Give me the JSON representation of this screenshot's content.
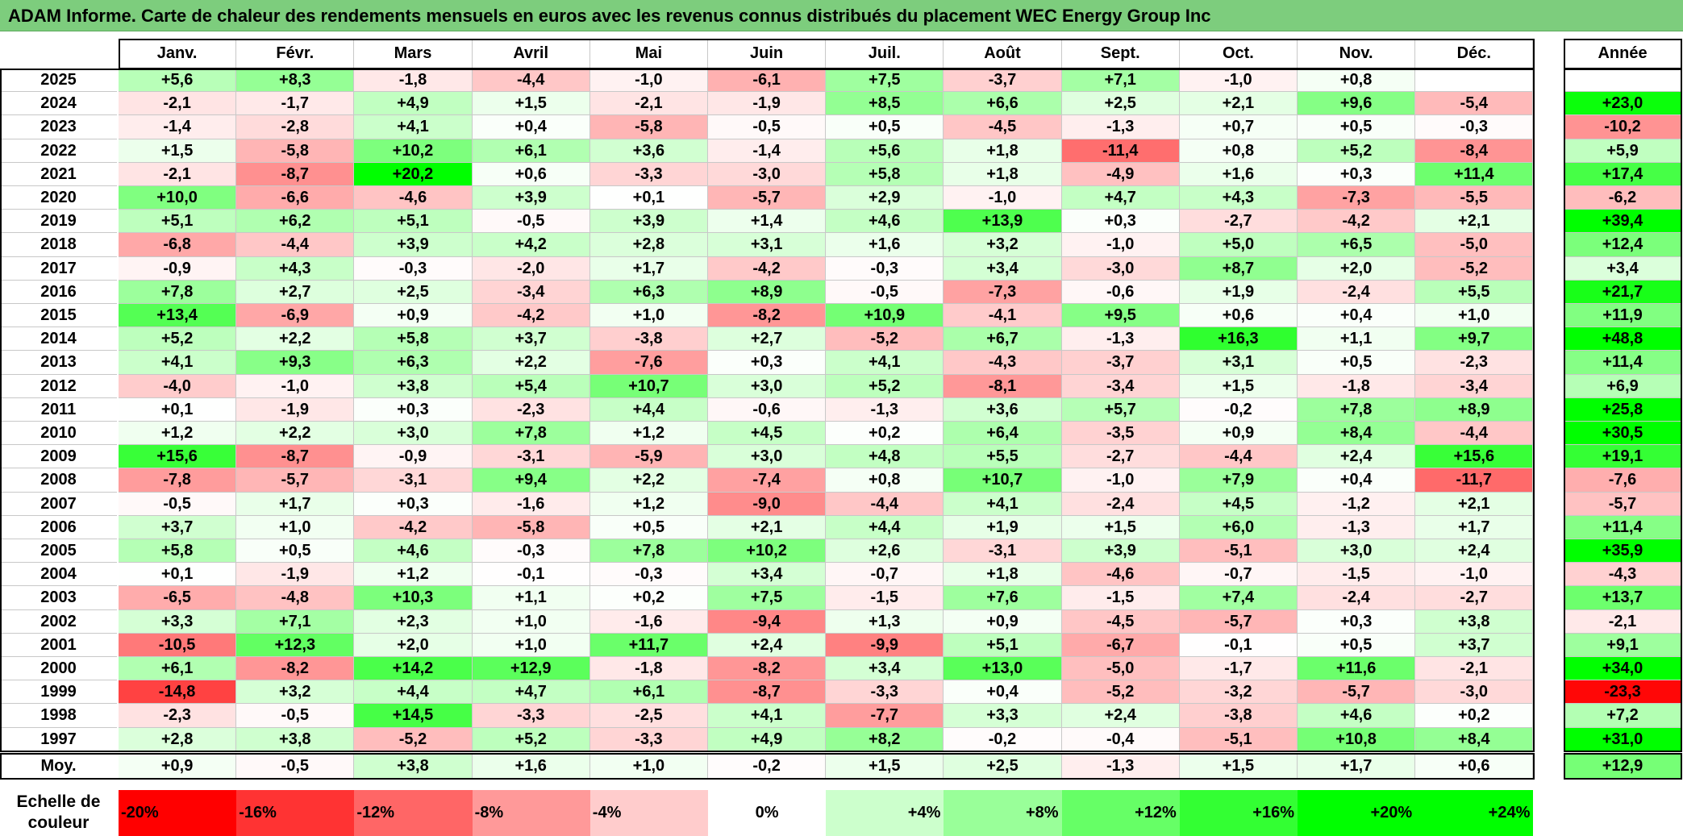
{
  "title": "ADAM Informe. Carte de chaleur des rendements mensuels en euros avec les revenus connus distribués du placement WEC Energy Group Inc",
  "colors": {
    "title_bar": "#7dcd7d",
    "negative_max": "#ff0000",
    "neutral": "#ffffff",
    "positive_max": "#00ff00"
  },
  "chart_data": {
    "type": "heatmap",
    "columns": [
      "Janv.",
      "Févr.",
      "Mars",
      "Avril",
      "Mai",
      "Juin",
      "Juil.",
      "Août",
      "Sept.",
      "Oct.",
      "Nov.",
      "Déc."
    ],
    "year_header": "Année",
    "rows": [
      {
        "year": "2025",
        "values": [
          "+5,6",
          "+8,3",
          "-1,8",
          "-4,4",
          "-1,0",
          "-6,1",
          "+7,5",
          "-3,7",
          "+7,1",
          "-1,0",
          "+0,8",
          ""
        ],
        "annual": ""
      },
      {
        "year": "2024",
        "values": [
          "-2,1",
          "-1,7",
          "+4,9",
          "+1,5",
          "-2,1",
          "-1,9",
          "+8,5",
          "+6,6",
          "+2,5",
          "+2,1",
          "+9,6",
          "-5,4"
        ],
        "annual": "+23,0"
      },
      {
        "year": "2023",
        "values": [
          "-1,4",
          "-2,8",
          "+4,1",
          "+0,4",
          "-5,8",
          "-0,5",
          "+0,5",
          "-4,5",
          "-1,3",
          "+0,7",
          "+0,5",
          "-0,3"
        ],
        "annual": "-10,2"
      },
      {
        "year": "2022",
        "values": [
          "+1,5",
          "-5,8",
          "+10,2",
          "+6,1",
          "+3,6",
          "-1,4",
          "+5,6",
          "+1,8",
          "-11,4",
          "+0,8",
          "+5,2",
          "-8,4"
        ],
        "annual": "+5,9"
      },
      {
        "year": "2021",
        "values": [
          "-2,1",
          "-8,7",
          "+20,2",
          "+0,6",
          "-3,3",
          "-3,0",
          "+5,8",
          "+1,8",
          "-4,9",
          "+1,6",
          "+0,3",
          "+11,4"
        ],
        "annual": "+17,4"
      },
      {
        "year": "2020",
        "values": [
          "+10,0",
          "-6,6",
          "-4,6",
          "+3,9",
          "+0,1",
          "-5,7",
          "+2,9",
          "-1,0",
          "+4,7",
          "+4,3",
          "-7,3",
          "-5,5"
        ],
        "annual": "-6,2"
      },
      {
        "year": "2019",
        "values": [
          "+5,1",
          "+6,2",
          "+5,1",
          "-0,5",
          "+3,9",
          "+1,4",
          "+4,6",
          "+13,9",
          "+0,3",
          "-2,7",
          "-4,2",
          "+2,1"
        ],
        "annual": "+39,4"
      },
      {
        "year": "2018",
        "values": [
          "-6,8",
          "-4,4",
          "+3,9",
          "+4,2",
          "+2,8",
          "+3,1",
          "+1,6",
          "+3,2",
          "-1,0",
          "+5,0",
          "+6,5",
          "-5,0"
        ],
        "annual": "+12,4"
      },
      {
        "year": "2017",
        "values": [
          "-0,9",
          "+4,3",
          "-0,3",
          "-2,0",
          "+1,7",
          "-4,2",
          "-0,3",
          "+3,4",
          "-3,0",
          "+8,7",
          "+2,0",
          "-5,2"
        ],
        "annual": "+3,4"
      },
      {
        "year": "2016",
        "values": [
          "+7,8",
          "+2,7",
          "+2,5",
          "-3,4",
          "+6,3",
          "+8,9",
          "-0,5",
          "-7,3",
          "-0,6",
          "+1,9",
          "-2,4",
          "+5,5"
        ],
        "annual": "+21,7"
      },
      {
        "year": "2015",
        "values": [
          "+13,4",
          "-6,9",
          "+0,9",
          "-4,2",
          "+1,0",
          "-8,2",
          "+10,9",
          "-4,1",
          "+9,5",
          "+0,6",
          "+0,4",
          "+1,0"
        ],
        "annual": "+11,9"
      },
      {
        "year": "2014",
        "values": [
          "+5,2",
          "+2,2",
          "+5,8",
          "+3,7",
          "-3,8",
          "+2,7",
          "-5,2",
          "+6,7",
          "-1,3",
          "+16,3",
          "+1,1",
          "+9,7"
        ],
        "annual": "+48,8"
      },
      {
        "year": "2013",
        "values": [
          "+4,1",
          "+9,3",
          "+6,3",
          "+2,2",
          "-7,6",
          "+0,3",
          "+4,1",
          "-4,3",
          "-3,7",
          "+3,1",
          "+0,5",
          "-2,3"
        ],
        "annual": "+11,4"
      },
      {
        "year": "2012",
        "values": [
          "-4,0",
          "-1,0",
          "+3,8",
          "+5,4",
          "+10,7",
          "+3,0",
          "+5,2",
          "-8,1",
          "-3,4",
          "+1,5",
          "-1,8",
          "-3,4"
        ],
        "annual": "+6,9"
      },
      {
        "year": "2011",
        "values": [
          "+0,1",
          "-1,9",
          "+0,3",
          "-2,3",
          "+4,4",
          "-0,6",
          "-1,3",
          "+3,6",
          "+5,7",
          "-0,2",
          "+7,8",
          "+8,9"
        ],
        "annual": "+25,8"
      },
      {
        "year": "2010",
        "values": [
          "+1,2",
          "+2,2",
          "+3,0",
          "+7,8",
          "+1,2",
          "+4,5",
          "+0,2",
          "+6,4",
          "-3,5",
          "+0,9",
          "+8,4",
          "-4,4"
        ],
        "annual": "+30,5"
      },
      {
        "year": "2009",
        "values": [
          "+15,6",
          "-8,7",
          "-0,9",
          "-3,1",
          "-5,9",
          "+3,0",
          "+4,8",
          "+5,5",
          "-2,7",
          "-4,4",
          "+2,4",
          "+15,6"
        ],
        "annual": "+19,1"
      },
      {
        "year": "2008",
        "values": [
          "-7,8",
          "-5,7",
          "-3,1",
          "+9,4",
          "+2,2",
          "-7,4",
          "+0,8",
          "+10,7",
          "-1,0",
          "+7,9",
          "+0,4",
          "-11,7"
        ],
        "annual": "-7,6"
      },
      {
        "year": "2007",
        "values": [
          "-0,5",
          "+1,7",
          "+0,3",
          "-1,6",
          "+1,2",
          "-9,0",
          "-4,4",
          "+4,1",
          "-2,4",
          "+4,5",
          "-1,2",
          "+2,1"
        ],
        "annual": "-5,7"
      },
      {
        "year": "2006",
        "values": [
          "+3,7",
          "+1,0",
          "-4,2",
          "-5,8",
          "+0,5",
          "+2,1",
          "+4,4",
          "+1,9",
          "+1,5",
          "+6,0",
          "-1,3",
          "+1,7"
        ],
        "annual": "+11,4"
      },
      {
        "year": "2005",
        "values": [
          "+5,8",
          "+0,5",
          "+4,6",
          "-0,3",
          "+7,8",
          "+10,2",
          "+2,6",
          "-3,1",
          "+3,9",
          "-5,1",
          "+3,0",
          "+2,4"
        ],
        "annual": "+35,9"
      },
      {
        "year": "2004",
        "values": [
          "+0,1",
          "-1,9",
          "+1,2",
          "-0,1",
          "-0,3",
          "+3,4",
          "-0,7",
          "+1,8",
          "-4,6",
          "-0,7",
          "-1,5",
          "-1,0"
        ],
        "annual": "-4,3"
      },
      {
        "year": "2003",
        "values": [
          "-6,5",
          "-4,8",
          "+10,3",
          "+1,1",
          "+0,2",
          "+7,5",
          "-1,5",
          "+7,6",
          "-1,5",
          "+7,4",
          "-2,4",
          "-2,7"
        ],
        "annual": "+13,7"
      },
      {
        "year": "2002",
        "values": [
          "+3,3",
          "+7,1",
          "+2,3",
          "+1,0",
          "-1,6",
          "-9,4",
          "+1,3",
          "+0,9",
          "-4,5",
          "-5,7",
          "+0,3",
          "+3,8"
        ],
        "annual": "-2,1"
      },
      {
        "year": "2001",
        "values": [
          "-10,5",
          "+12,3",
          "+2,0",
          "+1,0",
          "+11,7",
          "+2,4",
          "-9,9",
          "+5,1",
          "-6,7",
          "-0,1",
          "+0,5",
          "+3,7"
        ],
        "annual": "+9,1"
      },
      {
        "year": "2000",
        "values": [
          "+6,1",
          "-8,2",
          "+14,2",
          "+12,9",
          "-1,8",
          "-8,2",
          "+3,4",
          "+13,0",
          "-5,0",
          "-1,7",
          "+11,6",
          "-2,1"
        ],
        "annual": "+34,0"
      },
      {
        "year": "1999",
        "values": [
          "-14,8",
          "+3,2",
          "+4,4",
          "+4,7",
          "+6,1",
          "-8,7",
          "-3,3",
          "+0,4",
          "-5,2",
          "-3,2",
          "-5,7",
          "-3,0"
        ],
        "annual": "-23,3"
      },
      {
        "year": "1998",
        "values": [
          "-2,3",
          "-0,5",
          "+14,5",
          "-3,3",
          "-2,5",
          "+4,1",
          "-7,7",
          "+3,3",
          "+2,4",
          "-3,8",
          "+4,6",
          "+0,2"
        ],
        "annual": "+7,2"
      },
      {
        "year": "1997",
        "values": [
          "+2,8",
          "+3,8",
          "-5,2",
          "+5,2",
          "-3,3",
          "+4,9",
          "+8,2",
          "-0,2",
          "-0,4",
          "-5,1",
          "+10,8",
          "+8,4"
        ],
        "annual": "+31,0"
      }
    ],
    "average": {
      "label": "Moy.",
      "values": [
        "+0,9",
        "-0,5",
        "+3,8",
        "+1,6",
        "+1,0",
        "-0,2",
        "+1,5",
        "+2,5",
        "-1,3",
        "+1,5",
        "+1,7",
        "+0,6"
      ],
      "annual": "+12,9"
    },
    "scale": {
      "label": "Echelle de couleur",
      "items": [
        "-20%",
        "-16%",
        "-12%",
        "-8%",
        "-4%",
        "0%",
        "+4%",
        "+8%",
        "+12%",
        "+16%",
        "+20%",
        "+24%"
      ],
      "values": [
        -20,
        -16,
        -12,
        -8,
        -4,
        0,
        4,
        8,
        12,
        16,
        20,
        24
      ]
    }
  }
}
